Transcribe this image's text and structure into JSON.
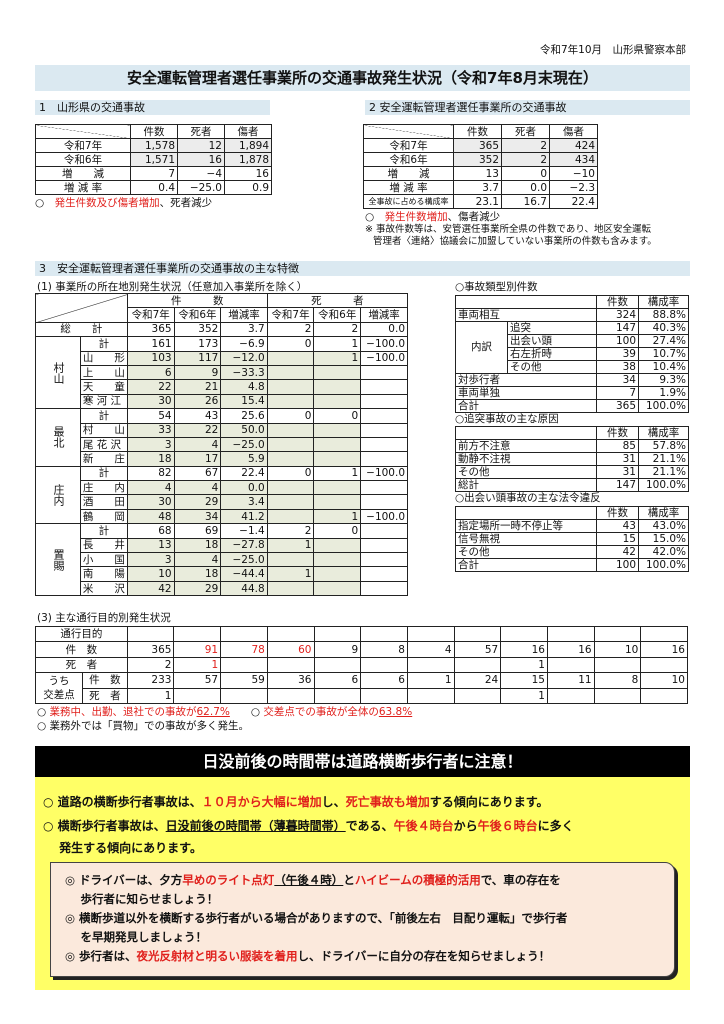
{
  "header": {
    "date": "令和7年10月　山形県警察本部",
    "title": "安全運転管理者選任事業所の交通事故発生状況（令和7年8月末現在）"
  },
  "sec1": {
    "heading": "1　山形県の交通事故",
    "cols": [
      "件数",
      "死者",
      "傷者"
    ],
    "rows": [
      {
        "label": "令和7年",
        "v": [
          "1,578",
          "12",
          "1,894"
        ]
      },
      {
        "label": "令和6年",
        "v": [
          "1,571",
          "16",
          "1,878"
        ]
      },
      {
        "label": "増　　減",
        "v": [
          "7",
          "−4",
          "16"
        ]
      },
      {
        "label": "増 減 率",
        "v": [
          "0.4",
          "−25.0",
          "0.9"
        ]
      }
    ],
    "note": [
      {
        "t": "○　"
      },
      {
        "t": "発生件数及び傷者増加",
        "red": true
      },
      {
        "t": "、死者減少"
      }
    ]
  },
  "sec2": {
    "heading": "2 安全運転管理者選任事業所の交通事故",
    "cols": [
      "件数",
      "死者",
      "傷者"
    ],
    "rows": [
      {
        "label": "令和7年",
        "v": [
          "365",
          "2",
          "424"
        ]
      },
      {
        "label": "令和6年",
        "v": [
          "352",
          "2",
          "434"
        ]
      },
      {
        "label": "増　　減",
        "v": [
          "13",
          "0",
          "−10"
        ]
      },
      {
        "label": "増 減 率",
        "v": [
          "3.7",
          "0.0",
          "−2.3"
        ]
      },
      {
        "label": "全事故に占める構成率",
        "v": [
          "23.1",
          "16.7",
          "22.4"
        ]
      }
    ],
    "note": [
      {
        "t": "○　"
      },
      {
        "t": "発生件数増加",
        "red": true
      },
      {
        "t": "、傷者減少"
      }
    ],
    "remark1": "※ 事故件数等は、安管選任事業所全県の件数であり、地区安全運転",
    "remark2": "管理者〈連絡〉協議会に加盟していない事業所の件数も含みます。"
  },
  "sec3": {
    "heading": "3　安全運転管理者選任事業所の交通事故の主な特徴",
    "sub1": {
      "title": "(1) 事業所の所在地別発生状況（任意加入事業所を除く）",
      "group_kensu": "件　　　数",
      "group_shisha": "死　　　者",
      "cols": [
        "令和7年",
        "令和6年",
        "増減率",
        "令和7年",
        "令和6年",
        "増減率"
      ],
      "grand": {
        "label": "総　　計",
        "v": [
          "365",
          "352",
          "3.7",
          "2",
          "2",
          "0.0"
        ]
      },
      "total_label": "計",
      "regions": [
        {
          "name": "村山",
          "total": [
            "161",
            "173",
            "−6.9",
            "0",
            "1",
            "−100.0"
          ],
          "subs": [
            {
              "name": "山　　形",
              "v": [
                "103",
                "117",
                "−12.0",
                "",
                "1",
                "−100.0"
              ]
            },
            {
              "name": "上　　山",
              "v": [
                "6",
                "9",
                "−33.3",
                "",
                "",
                ""
              ]
            },
            {
              "name": "天　　童",
              "v": [
                "22",
                "21",
                "4.8",
                "",
                "",
                ""
              ]
            },
            {
              "name": "寒 河 江",
              "v": [
                "30",
                "26",
                "15.4",
                "",
                "",
                ""
              ]
            }
          ]
        },
        {
          "name": "最北",
          "total": [
            "54",
            "43",
            "25.6",
            "0",
            "0",
            ""
          ],
          "subs": [
            {
              "name": "村　　山",
              "v": [
                "33",
                "22",
                "50.0",
                "",
                "",
                ""
              ]
            },
            {
              "name": "尾 花 沢",
              "v": [
                "3",
                "4",
                "−25.0",
                "",
                "",
                ""
              ]
            },
            {
              "name": "新　　庄",
              "v": [
                "18",
                "17",
                "5.9",
                "",
                "",
                ""
              ]
            }
          ]
        },
        {
          "name": "庄内",
          "total": [
            "82",
            "67",
            "22.4",
            "0",
            "1",
            "−100.0"
          ],
          "subs": [
            {
              "name": "庄　　内",
              "v": [
                "4",
                "4",
                "0.0",
                "",
                "",
                ""
              ]
            },
            {
              "name": "酒　　田",
              "v": [
                "30",
                "29",
                "3.4",
                "",
                "",
                ""
              ]
            },
            {
              "name": "鶴　　岡",
              "v": [
                "48",
                "34",
                "41.2",
                "",
                "1",
                "−100.0"
              ]
            }
          ]
        },
        {
          "name": "置賜",
          "total": [
            "68",
            "69",
            "−1.4",
            "2",
            "0",
            ""
          ],
          "subs": [
            {
              "name": "長　　井",
              "v": [
                "13",
                "18",
                "−27.8",
                "1",
                "",
                ""
              ]
            },
            {
              "name": "小　　国",
              "v": [
                "3",
                "4",
                "−25.0",
                "",
                "",
                ""
              ]
            },
            {
              "name": "南　　陽",
              "v": [
                "10",
                "18",
                "−44.4",
                "1",
                "",
                ""
              ]
            },
            {
              "name": "米　　沢",
              "v": [
                "42",
                "29",
                "44.8",
                "",
                "",
                ""
              ]
            }
          ]
        }
      ]
    },
    "types": {
      "title": "○事故類型別件数",
      "cols": [
        "件数",
        "構成率"
      ],
      "naiyaku": "内訳",
      "rows": [
        {
          "label": "車両相互",
          "v": [
            "324",
            "88.8%"
          ]
        }
      ],
      "subs": [
        {
          "label": "追突",
          "v": [
            "147",
            "40.3%"
          ]
        },
        {
          "label": "出会い頭",
          "v": [
            "100",
            "27.4%"
          ]
        },
        {
          "label": "右左折時",
          "v": [
            "39",
            "10.7%"
          ]
        },
        {
          "label": "その他",
          "v": [
            "38",
            "10.4%"
          ]
        }
      ],
      "rows2": [
        {
          "label": "対歩行者",
          "v": [
            "34",
            "9.3%"
          ]
        },
        {
          "label": "車両単独",
          "v": [
            "7",
            "1.9%"
          ]
        },
        {
          "label": "合計",
          "v": [
            "365",
            "100.0%"
          ]
        }
      ]
    },
    "causes": {
      "title": "○追突事故の主な原因",
      "cols": [
        "件数",
        "構成率"
      ],
      "rows": [
        {
          "label": "前方不注意",
          "v": [
            "85",
            "57.8%"
          ]
        },
        {
          "label": "動静不注視",
          "v": [
            "31",
            "21.1%"
          ]
        },
        {
          "label": "その他",
          "v": [
            "31",
            "21.1%"
          ]
        },
        {
          "label": "総計",
          "v": [
            "147",
            "100.0%"
          ]
        }
      ]
    },
    "violations": {
      "title": "○出会い頭事故の主な法令違反",
      "cols": [
        "件数",
        "構成率"
      ],
      "rows": [
        {
          "label": "指定場所一時不停止等",
          "v": [
            "43",
            "43.0%"
          ]
        },
        {
          "label": "信号無視",
          "v": [
            "15",
            "15.0%"
          ]
        },
        {
          "label": "その他",
          "v": [
            "42",
            "42.0%"
          ]
        },
        {
          "label": "合計",
          "v": [
            "100",
            "100.0%"
          ]
        }
      ]
    },
    "sub3": {
      "title": "(3) 主な通行目的別発生状況",
      "purpose_label": "通行目的",
      "cols": [
        {
          "t": "総　計"
        },
        {
          "t": "業務中",
          "red": true
        },
        {
          "t": "出　勤",
          "red": true
        },
        {
          "t": "退　社",
          "red": true
        },
        {
          "t": "観光・娯楽",
          "small": true
        },
        {
          "t": "ドライブ",
          "small": true
        },
        {
          "t": "飲　食"
        },
        {
          "t": "買　物"
        },
        {
          "t": "訪　問"
        },
        {
          "t": "送　迎"
        },
        {
          "t": "通　院"
        },
        {
          "t": "その他"
        }
      ],
      "rows": [
        {
          "label": "件　数",
          "v": [
            "365",
            "91",
            "78",
            "60",
            "9",
            "8",
            "4",
            "57",
            "16",
            "16",
            "10",
            "16"
          ],
          "red": [
            1,
            2,
            3
          ]
        },
        {
          "label": "死　者",
          "v": [
            "2",
            "1",
            "",
            "",
            "",
            "",
            "",
            "",
            "1",
            "",
            "",
            ""
          ],
          "red": [
            1
          ]
        }
      ],
      "inter_label1": "うち",
      "inter_label2": "交差点",
      "inter": [
        {
          "label": "件　数",
          "v": [
            "233",
            "57",
            "59",
            "36",
            "6",
            "6",
            "1",
            "24",
            "15",
            "11",
            "8",
            "10"
          ]
        },
        {
          "label": "死　者",
          "v": [
            "1",
            "",
            "",
            "",
            "",
            "",
            "",
            "",
            "1",
            "",
            "",
            ""
          ]
        }
      ],
      "note1": [
        {
          "t": "○ "
        },
        {
          "t": "業務中、出勤、退社での事故が",
          "red": true
        },
        {
          "t": "62.7%",
          "red": true,
          "u": true
        },
        {
          "t": "　　○ "
        },
        {
          "t": "交差点での事故が全体の",
          "red": true
        },
        {
          "t": "63.8%",
          "red": true,
          "u": true
        }
      ],
      "note2": [
        {
          "t": "○ 業務外では「買物」での事故が多く発生。"
        }
      ]
    }
  },
  "banner": {
    "title": "日没前後の時間帯は道路横断歩行者に注意！",
    "b1": [
      {
        "t": "○ 道路の横断歩行者事故は、"
      },
      {
        "t": "１０月から大幅に増加",
        "red": true
      },
      {
        "t": "し、"
      },
      {
        "t": "死亡事故も増加",
        "red": true
      },
      {
        "t": "する傾向にあります。"
      }
    ],
    "b2": [
      {
        "t": "○ 横断歩行者事故は、"
      },
      {
        "t": "日没前後の時間帯（薄暮時間帯）",
        "u": true
      },
      {
        "t": "である、"
      },
      {
        "t": "午後４時台",
        "red": true
      },
      {
        "t": "から"
      },
      {
        "t": "午後６時台",
        "red": true
      },
      {
        "t": "に多く"
      }
    ],
    "b3": [
      {
        "t": "　 発生する傾向にあります。"
      }
    ],
    "i1": [
      {
        "t": "◎ ドライバーは、夕方"
      },
      {
        "t": "早めのライト点灯",
        "red": true
      },
      {
        "t": "（午後４時）",
        "u": true
      },
      {
        "t": "と"
      },
      {
        "t": "ハイビームの積極的活用",
        "red": true
      },
      {
        "t": "で、車の存在を"
      }
    ],
    "i2": [
      {
        "t": "　 歩行者に知らせましょう！"
      }
    ],
    "i3": [
      {
        "t": "◎ 横断歩道以外を横断する歩行者がいる場合がありますので、「前後左右　目配り運転」で歩行者"
      }
    ],
    "i4": [
      {
        "t": "　 を早期発見しましょう！"
      }
    ],
    "i5": [
      {
        "t": "◎ 歩行者は、"
      },
      {
        "t": "夜光反射材と明るい服装を着用",
        "red": true
      },
      {
        "t": "し、ドライバーに自分の存在を知らせましょう！"
      }
    ]
  },
  "colors": {
    "accent_red": "#e0201c",
    "heading_bg": "#dbe9f1",
    "banner_bg": "#000000",
    "highlight_bg": "#ffff66",
    "inner_bg": "#fbe9dc"
  }
}
